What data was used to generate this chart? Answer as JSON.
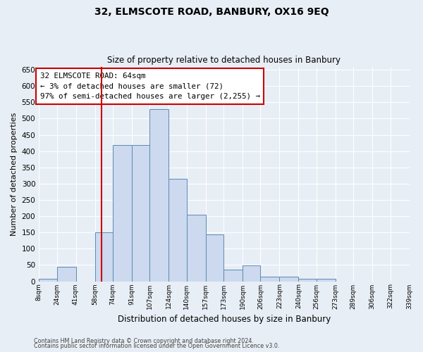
{
  "title": "32, ELMSCOTE ROAD, BANBURY, OX16 9EQ",
  "subtitle": "Size of property relative to detached houses in Banbury",
  "xlabel": "Distribution of detached houses by size in Banbury",
  "ylabel": "Number of detached properties",
  "bin_edges": [
    8,
    24,
    41,
    58,
    74,
    91,
    107,
    124,
    140,
    157,
    173,
    190,
    206,
    223,
    240,
    256,
    273,
    289,
    306,
    322,
    339
  ],
  "bin_labels": [
    "8sqm",
    "24sqm",
    "41sqm",
    "58sqm",
    "74sqm",
    "91sqm",
    "107sqm",
    "124sqm",
    "140sqm",
    "157sqm",
    "173sqm",
    "190sqm",
    "206sqm",
    "223sqm",
    "240sqm",
    "256sqm",
    "273sqm",
    "289sqm",
    "306sqm",
    "322sqm",
    "339sqm"
  ],
  "bar_heights": [
    8,
    44,
    0,
    150,
    419,
    419,
    530,
    316,
    205,
    143,
    35,
    48,
    15,
    15,
    8,
    8,
    0,
    0,
    0,
    0
  ],
  "bar_color": "#ccd9ee",
  "bar_edge_color": "#5b8ab5",
  "vline_x": 64,
  "vline_color": "#cc0000",
  "annotation_text": "32 ELMSCOTE ROAD: 64sqm\n← 3% of detached houses are smaller (72)\n97% of semi-detached houses are larger (2,255) →",
  "annotation_box_color": "#cc0000",
  "ylim": [
    0,
    660
  ],
  "yticks": [
    0,
    50,
    100,
    150,
    200,
    250,
    300,
    350,
    400,
    450,
    500,
    550,
    600,
    650
  ],
  "footer1": "Contains HM Land Registry data © Crown copyright and database right 2024.",
  "footer2": "Contains public sector information licensed under the Open Government Licence v3.0.",
  "bg_color": "#e8eef5",
  "plot_bg_color": "#e8eef5",
  "grid_color": "#ffffff"
}
